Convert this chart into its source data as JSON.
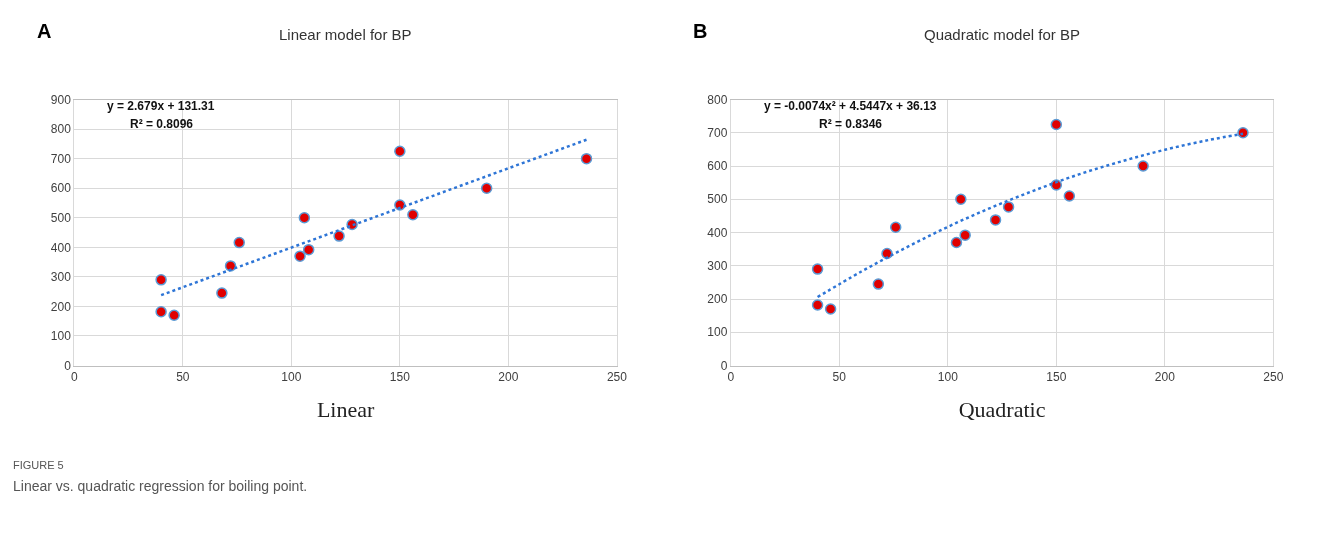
{
  "chart_data": [
    {
      "type": "scatter",
      "title": "Linear model for BP",
      "xlabel": "Linear",
      "annotations": [
        "A",
        "y = 2.679x + 131.31",
        "R² = 0.8096",
        "FIGURE 5",
        "Linear vs. quadratic regression for boiling point."
      ],
      "xlim": [
        0,
        250
      ],
      "xticks": [
        0,
        50,
        100,
        150,
        200,
        250
      ],
      "ylim": [
        0,
        900
      ],
      "yticks": [
        0,
        100,
        200,
        300,
        400,
        500,
        600,
        700,
        800,
        900
      ],
      "grid": true,
      "marker": "circle",
      "series": [
        {
          "color": "#e00000",
          "x": [
            40,
            40,
            46,
            68,
            72,
            76,
            104,
            106,
            108,
            122,
            128,
            150,
            150,
            156,
            190,
            236
          ],
          "values": [
            290,
            182,
            170,
            245,
            337,
            416,
            370,
            500,
            392,
            438,
            477,
            725,
            543,
            510,
            600,
            700
          ]
        },
        {
          "type": "line",
          "color": "#2e75d6",
          "line_style": "dotted",
          "marker": "none",
          "x": [
            40,
            236
          ],
          "values": [
            238,
            764
          ]
        }
      ]
    },
    {
      "type": "scatter",
      "title": "Quadratic model for BP",
      "xlabel": "Quadratic",
      "annotations": [
        "B",
        "y = -0.0074x² + 4.5447x + 36.13",
        "R² = 0.8346"
      ],
      "xlim": [
        0,
        250
      ],
      "xticks": [
        0,
        50,
        100,
        150,
        200,
        250
      ],
      "ylim": [
        0,
        800
      ],
      "yticks": [
        0,
        100,
        200,
        300,
        400,
        500,
        600,
        700,
        800
      ],
      "grid": true,
      "marker": "circle",
      "series": [
        {
          "color": "#e00000",
          "x": [
            40,
            40,
            46,
            68,
            72,
            76,
            104,
            106,
            108,
            122,
            128,
            150,
            150,
            156,
            190,
            236
          ],
          "values": [
            290,
            182,
            170,
            245,
            337,
            416,
            370,
            500,
            392,
            438,
            477,
            725,
            543,
            510,
            600,
            700
          ]
        },
        {
          "type": "line",
          "color": "#2e75d6",
          "line_style": "dotted",
          "marker": "none",
          "x": [
            40,
            60,
            80,
            100,
            120,
            140,
            160,
            180,
            200,
            220,
            236
          ],
          "values": [
            206,
            282,
            352,
            417,
            475,
            527,
            574,
            614,
            649,
            678,
            697
          ]
        }
      ]
    }
  ]
}
